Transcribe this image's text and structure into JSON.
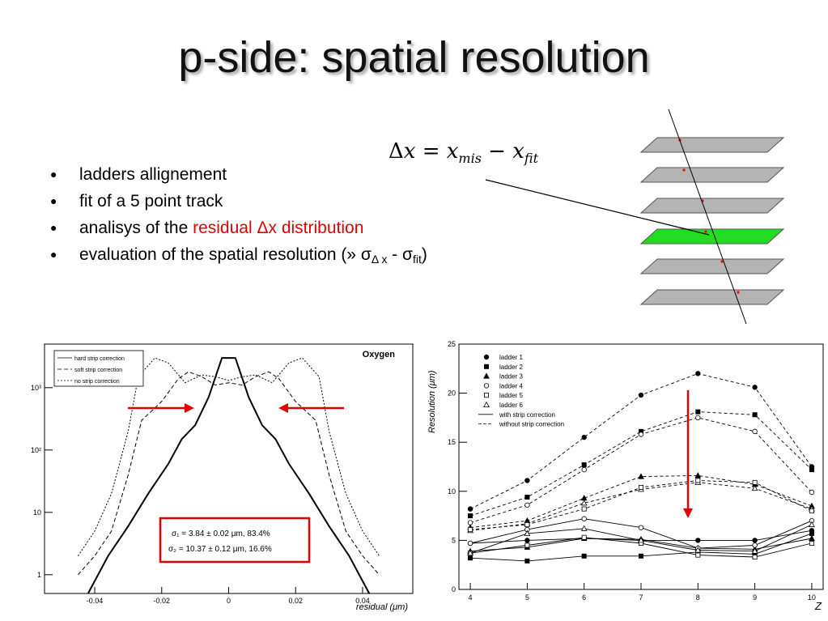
{
  "slide": {
    "title": "p-side: spatial resolution",
    "formula": "Δx = x_mis − x_fit",
    "bullets": [
      {
        "text": "ladders allignement"
      },
      {
        "text": "fit of a 5 point track"
      },
      {
        "text_pre": "analisys of the ",
        "text_red": "residual Δx distribution"
      },
      {
        "text_pre": "evaluation of the spatial resolution (» σ",
        "sub1": "Δ x",
        "mid": " - σ",
        "sub2": "fit",
        "post": ")"
      }
    ],
    "bullet_icon": "bullet-dot-icon"
  },
  "detector_diagram": {
    "ladder_count": 6,
    "highlighted_ladder": 4,
    "ladder_color": "#b4b4b4",
    "highlight_color": "#22dd22",
    "hit_color": "#ff0000"
  },
  "colors": {
    "arrow": "#e00000",
    "box": "#e00000"
  },
  "chart_data": [
    {
      "type": "line",
      "title": "Oxygen",
      "xlabel": "residual   (μm)",
      "ylabel": "",
      "xlim": [
        -0.055,
        0.055
      ],
      "ylim_log": [
        0.5,
        5000
      ],
      "yscale": "log",
      "x_ticks": [
        "-0.04",
        "-0.02",
        "0",
        "0.02",
        "0.04"
      ],
      "x_tick_values": [
        -0.04,
        -0.02,
        0,
        0.02,
        0.04
      ],
      "y_ticks": [
        "1",
        "10",
        "10²",
        "10³"
      ],
      "y_tick_values": [
        1,
        10,
        100,
        1000
      ],
      "legend": [
        "hard strip correction",
        "soft strip correction",
        "no strip correction"
      ],
      "legend_placement": "top-left",
      "annotation": {
        "line1": "σ₁ =  3.84 ±  0.02 μm,  83.4%",
        "line2": "σ₂ = 10.37 ±  0.12 μm,  16.6%"
      },
      "series": [
        {
          "name": "hard strip correction",
          "style": "solid",
          "x": [
            -0.042,
            -0.036,
            -0.03,
            -0.024,
            -0.018,
            -0.014,
            -0.01,
            -0.006,
            -0.002,
            0.002,
            0.006,
            0.01,
            0.014,
            0.018,
            0.024,
            0.03,
            0.036,
            0.042
          ],
          "y": [
            0.5,
            2,
            6,
            20,
            60,
            150,
            250,
            700,
            3000,
            3000,
            700,
            250,
            150,
            60,
            20,
            6,
            2,
            0.5
          ]
        },
        {
          "name": "soft strip correction",
          "style": "dashed",
          "x": [
            -0.045,
            -0.04,
            -0.035,
            -0.03,
            -0.026,
            -0.02,
            -0.015,
            -0.012,
            -0.008,
            -0.004,
            0,
            0.004,
            0.008,
            0.012,
            0.015,
            0.02,
            0.026,
            0.03,
            0.035,
            0.04,
            0.045
          ],
          "y": [
            1,
            2,
            5,
            40,
            300,
            600,
            1400,
            1800,
            1500,
            1100,
            1200,
            1100,
            1500,
            1800,
            1400,
            600,
            300,
            40,
            5,
            2,
            1
          ]
        },
        {
          "name": "no strip correction",
          "style": "dotted",
          "x": [
            -0.045,
            -0.04,
            -0.035,
            -0.03,
            -0.027,
            -0.022,
            -0.018,
            -0.013,
            -0.008,
            -0.004,
            0,
            0.004,
            0.008,
            0.013,
            0.018,
            0.022,
            0.027,
            0.03,
            0.035,
            0.04,
            0.045
          ],
          "y": [
            2,
            5,
            20,
            200,
            1500,
            3000,
            2500,
            1200,
            1600,
            1500,
            1300,
            1500,
            1600,
            1200,
            2500,
            3000,
            1500,
            200,
            20,
            5,
            2
          ]
        }
      ]
    },
    {
      "type": "line",
      "title": "",
      "xlabel": "Z",
      "ylabel": "Resolution (μm)",
      "xlim": [
        3.8,
        10.2
      ],
      "ylim": [
        0,
        25
      ],
      "x_ticks": [
        "4",
        "5",
        "6",
        "7",
        "8",
        "9",
        "10"
      ],
      "x_tick_values": [
        4,
        5,
        6,
        7,
        8,
        9,
        10
      ],
      "y_ticks": [
        "0",
        "5",
        "10",
        "15",
        "20",
        "25"
      ],
      "y_tick_values": [
        0,
        5,
        10,
        15,
        20,
        25
      ],
      "legend_placement": "top-left",
      "legend": [
        {
          "label": "ladder 1",
          "marker": "filled-circle"
        },
        {
          "label": "ladder 2",
          "marker": "filled-square"
        },
        {
          "label": "ladder 3",
          "marker": "filled-triangle"
        },
        {
          "label": "ladder 4",
          "marker": "open-circle"
        },
        {
          "label": "ladder 5",
          "marker": "open-square"
        },
        {
          "label": "ladder 6",
          "marker": "open-triangle"
        },
        {
          "label": "with strip correction",
          "marker": "solid-line"
        },
        {
          "label": "without strip correction",
          "marker": "dashed-line"
        }
      ],
      "x": [
        4,
        5,
        6,
        7,
        8,
        9,
        10
      ],
      "series": [
        {
          "ladder": 1,
          "marker": "filled-circle",
          "style": "dashed",
          "values": [
            8.2,
            11.1,
            15.5,
            19.8,
            22.0,
            20.6,
            12.5
          ]
        },
        {
          "ladder": 2,
          "marker": "filled-square",
          "style": "dashed",
          "values": [
            7.5,
            9.4,
            12.7,
            16.1,
            18.1,
            17.8,
            12.2
          ]
        },
        {
          "ladder": 4,
          "marker": "open-circle",
          "style": "dashed",
          "values": [
            6.8,
            8.6,
            12.2,
            15.8,
            17.5,
            16.1,
            9.9
          ]
        },
        {
          "ladder": 3,
          "marker": "filled-triangle",
          "style": "dashed",
          "values": [
            6.3,
            7.0,
            9.3,
            11.5,
            11.6,
            10.7,
            8.5
          ]
        },
        {
          "ladder": 6,
          "marker": "open-triangle",
          "style": "dashed",
          "values": [
            6.0,
            6.7,
            8.8,
            10.2,
            10.9,
            10.3,
            8.2
          ]
        },
        {
          "ladder": 5,
          "marker": "open-square",
          "style": "dashed",
          "values": [
            6.1,
            6.6,
            8.2,
            10.4,
            11.1,
            10.9,
            8.0
          ]
        },
        {
          "ladder": 1,
          "marker": "filled-circle",
          "style": "solid",
          "values": [
            4.7,
            5.0,
            5.2,
            5.0,
            5.0,
            5.0,
            6.0
          ]
        },
        {
          "ladder": 2,
          "marker": "filled-square",
          "style": "solid",
          "values": [
            3.2,
            2.9,
            3.4,
            3.4,
            3.8,
            3.6,
            5.7
          ]
        },
        {
          "ladder": 3,
          "marker": "filled-triangle",
          "style": "solid",
          "values": [
            3.9,
            4.3,
            5.2,
            5.1,
            4.2,
            4.1,
            5.2
          ]
        },
        {
          "ladder": 4,
          "marker": "open-circle",
          "style": "solid",
          "values": [
            4.7,
            6.1,
            7.2,
            6.3,
            4.2,
            4.5,
            7.0
          ]
        },
        {
          "ladder": 5,
          "marker": "open-square",
          "style": "solid",
          "values": [
            3.7,
            4.5,
            5.3,
            4.7,
            3.5,
            3.3,
            4.7
          ]
        },
        {
          "ladder": 6,
          "marker": "open-triangle",
          "style": "solid",
          "values": [
            3.7,
            5.7,
            6.2,
            5.0,
            4.0,
            3.9,
            6.6
          ]
        }
      ]
    }
  ]
}
